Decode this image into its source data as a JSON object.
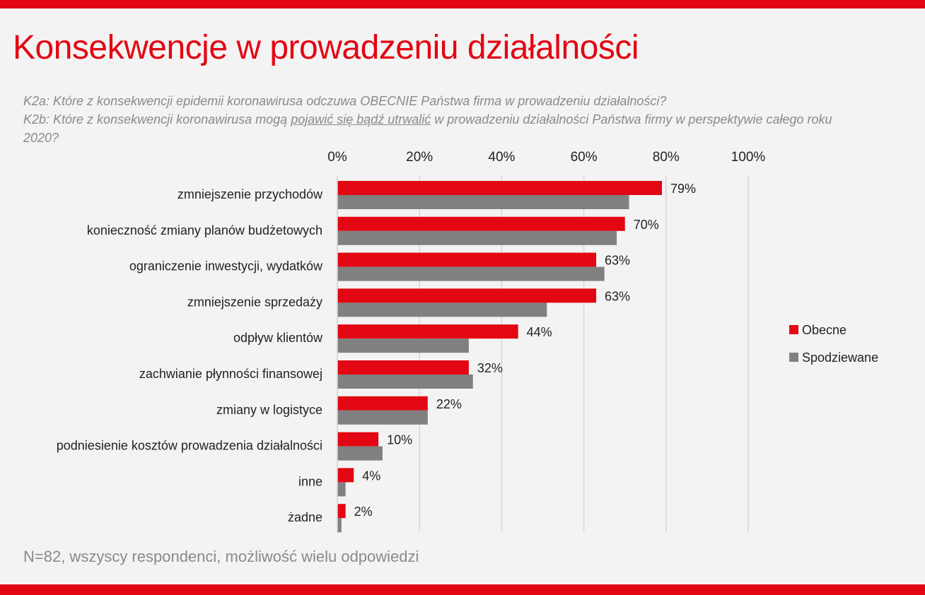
{
  "page": {
    "title": "Konsekwencje w prowadzeniu działalności",
    "question_1": "K2a: Które z konsekwencji epidemii koronawirusa odczuwa OBECNIE Państwa firma w prowadzeniu działalności?",
    "question_2_before": "K2b: Które z konsekwencji koronawirusa mogą ",
    "question_2_underlined": "pojawić się bądź utrwalić",
    "question_2_after": " w prowadzeniu działalności Państwa firmy w perspektywie całego roku 2020?",
    "footnote": "N=82, wszyscy respondenci, możliwość wielu odpowiedzi"
  },
  "chart_data": {
    "type": "bar",
    "orientation": "horizontal",
    "categories": [
      "zmniejszenie przychodów",
      "konieczność zmiany planów budżetowych",
      "ograniczenie inwestycji, wydatków",
      "zmniejszenie sprzedaży",
      "odpływ klientów",
      "zachwianie płynności finansowej",
      "zmiany w logistyce",
      "podniesienie kosztów prowadzenia działalności",
      "inne",
      "żadne"
    ],
    "series": [
      {
        "name": "Obecne",
        "color": "#e30613",
        "values": [
          79,
          70,
          63,
          63,
          44,
          32,
          22,
          10,
          4,
          2
        ],
        "labels": [
          "79%",
          "70%",
          "63%",
          "63%",
          "44%",
          "32%",
          "22%",
          "10%",
          "4%",
          "2%"
        ]
      },
      {
        "name": "Spodziewane",
        "color": "#808080",
        "values": [
          71,
          68,
          65,
          51,
          32,
          33,
          22,
          11,
          2,
          1
        ]
      }
    ],
    "xlim": [
      0,
      100
    ],
    "xticks": [
      "0%",
      "20%",
      "40%",
      "60%",
      "80%",
      "100%"
    ],
    "grid": true,
    "legend_position": "right"
  }
}
